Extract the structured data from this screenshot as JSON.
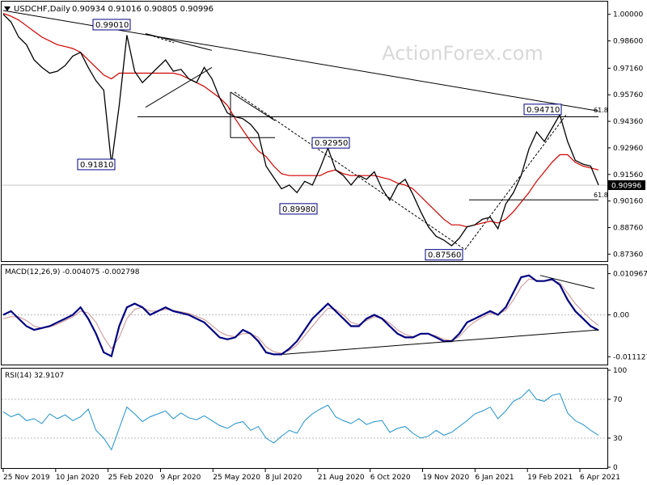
{
  "header": {
    "symbol": "USDCHF,Daily",
    "ohlc": "0.90934 0.91016 0.90805 0.90996"
  },
  "watermark": "ActionForex.com",
  "colors": {
    "price": "#000000",
    "sma": "#d00000",
    "trendline": "#000000",
    "macd": "#000080",
    "signal": "#c89090",
    "rsi": "#1e90c8",
    "label_border": "#000080",
    "grid": "#bbbbbb",
    "watermark": "#d8d8d8"
  },
  "chart_data": [
    {
      "type": "line",
      "panel": "price",
      "y_ticks": [
        "1.00000",
        "0.98600",
        "0.97160",
        "0.95760",
        "0.94360",
        "0.92960",
        "0.91560",
        "0.90160",
        "0.88760",
        "0.87360"
      ],
      "ylim": [
        0.8712,
        1.005
      ],
      "current_price_label": "0.90996",
      "current_price": 0.90996,
      "annotations": [
        {
          "label": "0.99010",
          "value": 0.9901
        },
        {
          "label": "0.91810",
          "value": 0.9181
        },
        {
          "label": "0.89980",
          "value": 0.8998
        },
        {
          "label": "0.92950",
          "value": 0.9295
        },
        {
          "label": "0.87560",
          "value": 0.8756
        },
        {
          "label": "0.94710",
          "value": 0.9471
        }
      ],
      "fib_labels": [
        {
          "label": "61.8",
          "value": 0.9471
        },
        {
          "label": "61.8",
          "value": 0.9022
        }
      ],
      "x_labels": [
        "25 Nov 2019",
        "10 Jan 2020",
        "25 Feb 2020",
        "9 Apr 2020",
        "25 May 2020",
        "8 Jul 2020",
        "21 Aug 2020",
        "6 Oct 2020",
        "19 Nov 2020",
        "6 Jan 2021",
        "19 Feb 2021",
        "6 Apr 2021"
      ],
      "series_price": [
        1.0,
        0.996,
        0.988,
        0.984,
        0.976,
        0.972,
        0.969,
        0.97,
        0.973,
        0.978,
        0.98,
        0.972,
        0.965,
        0.96,
        0.921,
        0.952,
        0.989,
        0.97,
        0.964,
        0.968,
        0.972,
        0.976,
        0.97,
        0.971,
        0.966,
        0.964,
        0.972,
        0.966,
        0.956,
        0.948,
        0.946,
        0.945,
        0.942,
        0.937,
        0.92,
        0.914,
        0.908,
        0.91,
        0.906,
        0.912,
        0.91,
        0.919,
        0.9295,
        0.918,
        0.915,
        0.91,
        0.915,
        0.913,
        0.917,
        0.908,
        0.902,
        0.91,
        0.913,
        0.905,
        0.896,
        0.888,
        0.883,
        0.881,
        0.878,
        0.882,
        0.888,
        0.889,
        0.892,
        0.893,
        0.887,
        0.9,
        0.906,
        0.915,
        0.929,
        0.938,
        0.933,
        0.94,
        0.9471,
        0.933,
        0.923,
        0.921,
        0.92,
        0.91
      ],
      "series_sma": [
        1.0005,
        0.999,
        0.997,
        0.994,
        0.991,
        0.988,
        0.986,
        0.984,
        0.983,
        0.982,
        0.98,
        0.976,
        0.972,
        0.968,
        0.966,
        0.969,
        0.969,
        0.969,
        0.969,
        0.969,
        0.969,
        0.969,
        0.969,
        0.968,
        0.966,
        0.964,
        0.962,
        0.959,
        0.956,
        0.952,
        0.945,
        0.939,
        0.933,
        0.928,
        0.925,
        0.92,
        0.916,
        0.915,
        0.915,
        0.915,
        0.915,
        0.915,
        0.917,
        0.918,
        0.916,
        0.915,
        0.915,
        0.915,
        0.915,
        0.914,
        0.913,
        0.911,
        0.91,
        0.908,
        0.904,
        0.9,
        0.896,
        0.892,
        0.889,
        0.889,
        0.888,
        0.889,
        0.89,
        0.891,
        0.89,
        0.892,
        0.896,
        0.901,
        0.906,
        0.912,
        0.917,
        0.922,
        0.926,
        0.926,
        0.922,
        0.92,
        0.919,
        0.918
      ]
    },
    {
      "type": "line",
      "panel": "macd",
      "title": "MACD(12,26,9) -0.004075 -0.002798",
      "y_ticks": [
        "0.010967",
        "0.00",
        "-0.011127"
      ],
      "ylim": [
        -0.013,
        0.0128
      ],
      "series_macd": [
        0.0,
        0.001,
        -0.001,
        -0.003,
        -0.004,
        -0.0035,
        -0.003,
        -0.002,
        -0.001,
        0.0,
        0.002,
        -0.001,
        -0.005,
        -0.01,
        -0.011,
        -0.003,
        0.002,
        0.003,
        0.002,
        0.0,
        0.001,
        0.002,
        0.001,
        0.0005,
        0.0,
        -0.001,
        -0.002,
        -0.004,
        -0.006,
        -0.0065,
        -0.006,
        -0.004,
        -0.005,
        -0.007,
        -0.01,
        -0.0105,
        -0.0105,
        -0.009,
        -0.007,
        -0.004,
        -0.001,
        0.001,
        0.003,
        0.001,
        -0.001,
        -0.003,
        -0.003,
        -0.001,
        0.0,
        -0.001,
        -0.003,
        -0.005,
        -0.006,
        -0.006,
        -0.005,
        -0.005,
        -0.006,
        -0.007,
        -0.007,
        -0.005,
        -0.002,
        -0.001,
        0.0,
        0.001,
        0.0,
        0.002,
        0.006,
        0.01,
        0.0105,
        0.009,
        0.009,
        0.0095,
        0.008,
        0.004,
        0.001,
        -0.001,
        -0.003,
        -0.0041
      ],
      "series_signal": [
        -0.001,
        -0.0005,
        -0.0005,
        -0.0015,
        -0.003,
        -0.0035,
        -0.0032,
        -0.0025,
        -0.0015,
        -0.0005,
        0.001,
        0.0005,
        -0.002,
        -0.006,
        -0.009,
        -0.006,
        -0.001,
        0.0015,
        0.002,
        0.001,
        0.001,
        0.0015,
        0.0012,
        0.0008,
        0.0004,
        -0.0004,
        -0.0012,
        -0.0028,
        -0.0045,
        -0.0055,
        -0.0058,
        -0.005,
        -0.005,
        -0.006,
        -0.0085,
        -0.0098,
        -0.0102,
        -0.0095,
        -0.008,
        -0.0055,
        -0.003,
        -0.0005,
        0.0018,
        0.0015,
        0.0,
        -0.002,
        -0.0026,
        -0.0015,
        -0.0005,
        -0.0008,
        -0.0022,
        -0.004,
        -0.0052,
        -0.0058,
        -0.0052,
        -0.005,
        -0.0056,
        -0.0065,
        -0.0068,
        -0.0058,
        -0.0035,
        -0.0018,
        -0.0006,
        0.0004,
        0.0002,
        0.0012,
        0.004,
        0.0075,
        0.0095,
        0.0092,
        0.009,
        0.0092,
        0.0085,
        0.0058,
        0.003,
        0.0008,
        -0.0012,
        -0.0028
      ]
    },
    {
      "type": "line",
      "panel": "rsi",
      "title": "RSI(14) 32.9107",
      "y_ticks": [
        "100",
        "70",
        "30",
        "0"
      ],
      "ylim": [
        0,
        100
      ],
      "levels": [
        70,
        30
      ],
      "series_rsi": [
        57,
        52,
        55,
        48,
        50,
        45,
        55,
        50,
        54,
        48,
        52,
        60,
        38,
        30,
        18,
        40,
        62,
        55,
        47,
        52,
        55,
        58,
        50,
        56,
        51,
        49,
        53,
        48,
        43,
        40,
        45,
        47,
        38,
        42,
        30,
        25,
        32,
        38,
        35,
        48,
        55,
        60,
        64,
        52,
        48,
        45,
        50,
        44,
        47,
        48,
        36,
        40,
        42,
        35,
        30,
        32,
        38,
        33,
        36,
        42,
        48,
        55,
        58,
        62,
        50,
        58,
        68,
        72,
        80,
        70,
        68,
        74,
        76,
        56,
        48,
        44,
        38,
        33
      ]
    }
  ]
}
